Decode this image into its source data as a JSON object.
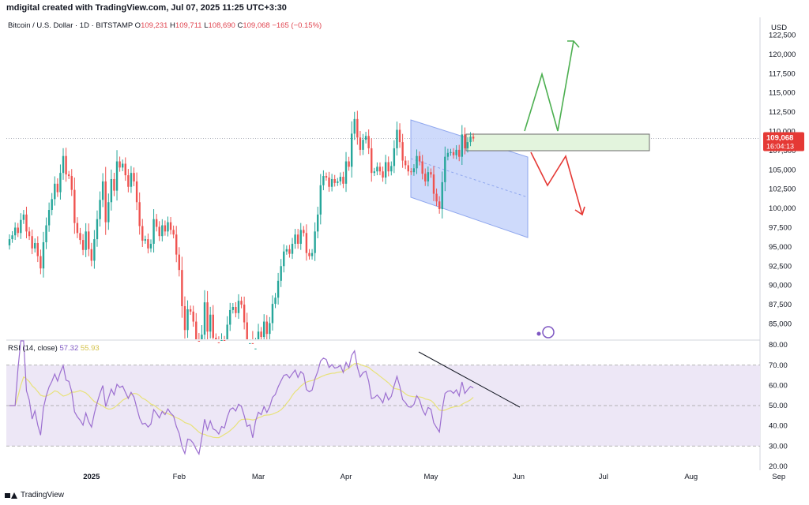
{
  "header": {
    "created_by": "mdigital created with TradingView.com, Jul 07, 2025 11:25 UTC+3:30"
  },
  "legend": {
    "symbol": "Bitcoin / U.S. Dollar · 1D · BITSTAMP",
    "open_label": "O",
    "open": "109,231",
    "high_label": "H",
    "high": "109,711",
    "low_label": "L",
    "low": "108,690",
    "close_label": "C",
    "close": "109,068",
    "change": "−165 (−0.15%)"
  },
  "rsi_legend": {
    "label": "RSI (14, close)",
    "rsi_value": "57.32",
    "ma_value": "55.93"
  },
  "footer": {
    "brand": "TradingView"
  },
  "colors": {
    "up": "#26a69a",
    "down": "#ef5350",
    "rsi_line": "#9c6fd0",
    "rsi_ma": "#e8e27a",
    "rsi_band": "#ede7f6",
    "channel_fill": "#c5d3fa",
    "zone_fill": "#e3f4dd",
    "green_arrow": "#4caf50",
    "red_arrow": "#e53935",
    "price_badge": "#e53935"
  },
  "chart_data": [
    {
      "type": "candlestick",
      "title": "Bitcoin / U.S. Dollar · 1D · BITSTAMP",
      "currency": "USD",
      "ylim": [
        83000,
        124800
      ],
      "y_ticks": [
        "85,000",
        "87,500",
        "90,000",
        "92,500",
        "95,000",
        "97,500",
        "100,000",
        "102,500",
        "105,000",
        "107,500",
        "110,000",
        "112,500",
        "115,000",
        "117,500",
        "120,000",
        "122,500"
      ],
      "x_ticks": [
        "2025",
        "Feb",
        "Mar",
        "Apr",
        "May",
        "Jun",
        "Jul",
        "Aug",
        "Sep"
      ],
      "last_price": "109,068",
      "countdown": "16:04:13",
      "ohlc_start_date": "2024-12-03",
      "closes": [
        96000,
        96500,
        97500,
        96800,
        98500,
        99200,
        97000,
        96400,
        94800,
        95500,
        93800,
        92200,
        95600,
        97800,
        99800,
        101200,
        103200,
        102100,
        104600,
        106800,
        104400,
        104200,
        102400,
        98100,
        96800,
        95900,
        94600,
        97000,
        94700,
        93200,
        96000,
        98600,
        101100,
        103500,
        98200,
        100800,
        103800,
        102300,
        106100,
        105300,
        105800,
        104300,
        102800,
        104600,
        103500,
        100800,
        97700,
        95800,
        96000,
        94800,
        95400,
        98600,
        97600,
        96400,
        97800,
        97000,
        98200,
        97200,
        96600,
        94000,
        92000,
        87300,
        84200,
        86900,
        86600,
        85300,
        82800,
        80600,
        83600,
        87800,
        84000,
        86200,
        83200,
        82600,
        81200,
        82900,
        82400,
        84900,
        86800,
        87200,
        86400,
        88000,
        87500,
        85200,
        82200,
        82500,
        78300,
        81800,
        84000,
        83300,
        85300,
        83700,
        85100,
        87600,
        88400,
        90600,
        92500,
        94400,
        94700,
        94100,
        95400,
        96600,
        95400,
        97200,
        96800,
        94200,
        93800,
        94200,
        97000,
        99200,
        103000,
        104200,
        104000,
        102800,
        103800,
        103300,
        103500,
        104100,
        103200,
        106100,
        105400,
        109700,
        111600,
        109200,
        107600,
        108900,
        109400,
        107800,
        104600,
        104800,
        105400,
        104800,
        104000,
        106000,
        104800,
        105500,
        107800,
        110200,
        108600,
        106200,
        105600,
        104800,
        104700,
        105200,
        106800,
        106100,
        104500,
        103500,
        104700,
        104400,
        101900,
        100900,
        99900,
        103400,
        106700,
        107200,
        107300,
        106900,
        107600,
        106700,
        109600,
        107800,
        108600,
        109300,
        109068
      ]
    },
    {
      "type": "line",
      "title": "RSI (14, close)",
      "ylim": [
        18,
        82
      ],
      "y_ticks": [
        "20.00",
        "30.00",
        "40.00",
        "50.00",
        "60.00",
        "70.00",
        "80.00"
      ],
      "band": [
        30,
        70
      ],
      "midline": 50,
      "series": [
        {
          "name": "RSI",
          "last": 57.32
        },
        {
          "name": "RSI-based MA",
          "last": 55.93
        }
      ]
    }
  ]
}
